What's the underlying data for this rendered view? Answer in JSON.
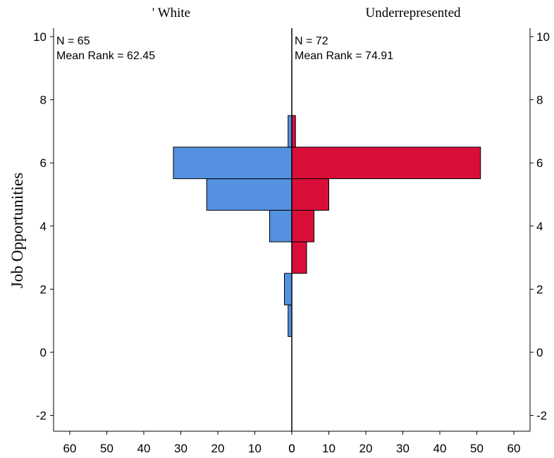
{
  "chart_data": {
    "type": "bar",
    "orientation": "horizontal-back-to-back",
    "ylabel": "Job Opportunities",
    "ylim": [
      -2.5,
      10.3
    ],
    "yticks": [
      -2,
      0,
      2,
      4,
      6,
      8,
      10
    ],
    "xticks_left": [
      60,
      50,
      40,
      30,
      20,
      10,
      0
    ],
    "xticks_right": [
      0,
      10,
      20,
      30,
      40,
      50,
      60
    ],
    "bin_width": 1,
    "grid": false,
    "colors": {
      "left": "#5591e1",
      "right": "#d90f3a",
      "outline": "#000000"
    },
    "panels": [
      {
        "name": "' White",
        "side": "left",
        "n_label": "N = 65",
        "mean_rank_label": "Mean Rank = 62.45",
        "bins": [
          {
            "y": 1,
            "count": 1
          },
          {
            "y": 2,
            "count": 2
          },
          {
            "y": 3,
            "count": 0
          },
          {
            "y": 4,
            "count": 6
          },
          {
            "y": 5,
            "count": 23
          },
          {
            "y": 6,
            "count": 32
          },
          {
            "y": 7,
            "count": 1
          }
        ]
      },
      {
        "name": "Underrepresented",
        "side": "right",
        "n_label": "N = 72",
        "mean_rank_label": "Mean Rank = 74.91",
        "bins": [
          {
            "y": 1,
            "count": 0
          },
          {
            "y": 2,
            "count": 0
          },
          {
            "y": 3,
            "count": 4
          },
          {
            "y": 4,
            "count": 6
          },
          {
            "y": 5,
            "count": 10
          },
          {
            "y": 6,
            "count": 51
          },
          {
            "y": 7,
            "count": 1
          }
        ]
      }
    ]
  }
}
